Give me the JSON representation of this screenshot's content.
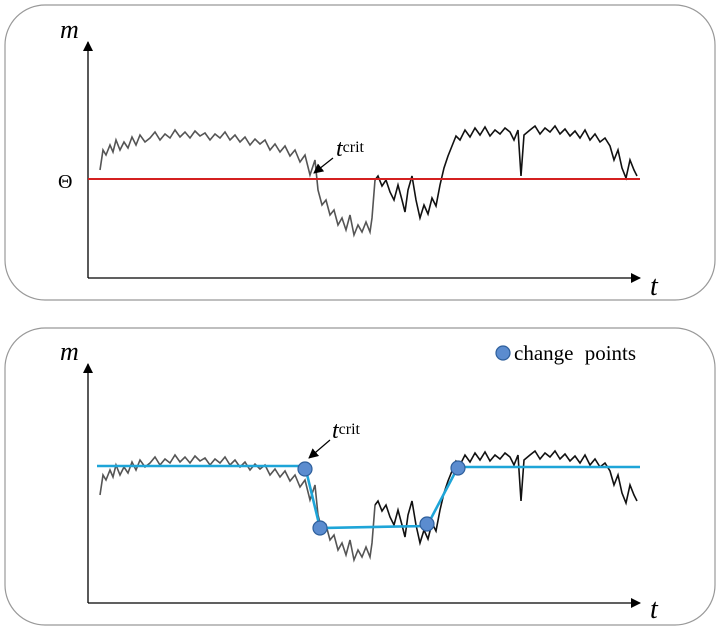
{
  "panels": [
    {
      "y_axis_label": "m",
      "x_axis_label": "t",
      "threshold_label": "Θ",
      "annotation": {
        "main": "t",
        "sub": "crit"
      }
    },
    {
      "y_axis_label": "m",
      "x_axis_label": "t",
      "annotation": {
        "main": "t",
        "sub": "crit"
      },
      "legend": "change points"
    }
  ]
}
